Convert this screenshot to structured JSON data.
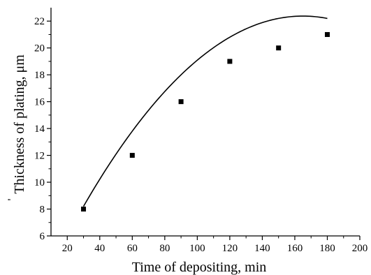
{
  "chart_data": {
    "type": "scatter",
    "title": "",
    "xlabel": "Time of depositing, min",
    "ylabel": "Thickness of plating, μm",
    "ylabel_prefix": "'",
    "xlim": [
      10,
      200
    ],
    "ylim": [
      6,
      23
    ],
    "x_ticks": [
      20,
      40,
      60,
      80,
      100,
      120,
      140,
      160,
      180,
      200
    ],
    "y_ticks": [
      6,
      8,
      10,
      12,
      14,
      16,
      18,
      20,
      22
    ],
    "grid": false,
    "legend": "none",
    "series": [
      {
        "marker": "square",
        "color": "#000000",
        "points": [
          {
            "x": 30,
            "y": 8.0
          },
          {
            "x": 60,
            "y": 12.0
          },
          {
            "x": 90,
            "y": 16.0
          },
          {
            "x": 120,
            "y": 19.0
          },
          {
            "x": 150,
            "y": 20.0
          },
          {
            "x": 180,
            "y": 21.0
          }
        ]
      }
    ],
    "fit_curve": {
      "type": "polynomial",
      "color": "#000000",
      "coefficients": [
        1.2,
        0.2567,
        -0.000778
      ],
      "x_range": [
        30,
        180
      ]
    }
  }
}
